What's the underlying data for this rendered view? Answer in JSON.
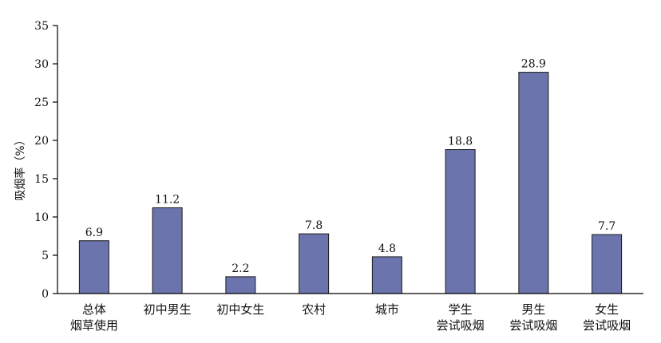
{
  "chart_data": {
    "type": "bar",
    "title": "",
    "xlabel": "",
    "ylabel": "吸烟率（%）",
    "ylim": [
      0,
      35
    ],
    "yticks": [
      0,
      5,
      10,
      15,
      20,
      25,
      30,
      35
    ],
    "grid": false,
    "categories": [
      [
        "总体",
        "烟草使用"
      ],
      [
        "初中男生"
      ],
      [
        "初中女生"
      ],
      [
        "农村"
      ],
      [
        "城市"
      ],
      [
        "学生",
        "尝试吸烟"
      ],
      [
        "男生",
        "尝试吸烟"
      ],
      [
        "女生",
        "尝试吸烟"
      ]
    ],
    "values": [
      6.9,
      11.2,
      2.2,
      7.8,
      4.8,
      18.8,
      28.9,
      7.7
    ],
    "data_labels": [
      "6.9",
      "11.2",
      "2.2",
      "7.8",
      "4.8",
      "18.8",
      "28.9",
      "7.7"
    ],
    "bar_color": "#6c74ad"
  }
}
